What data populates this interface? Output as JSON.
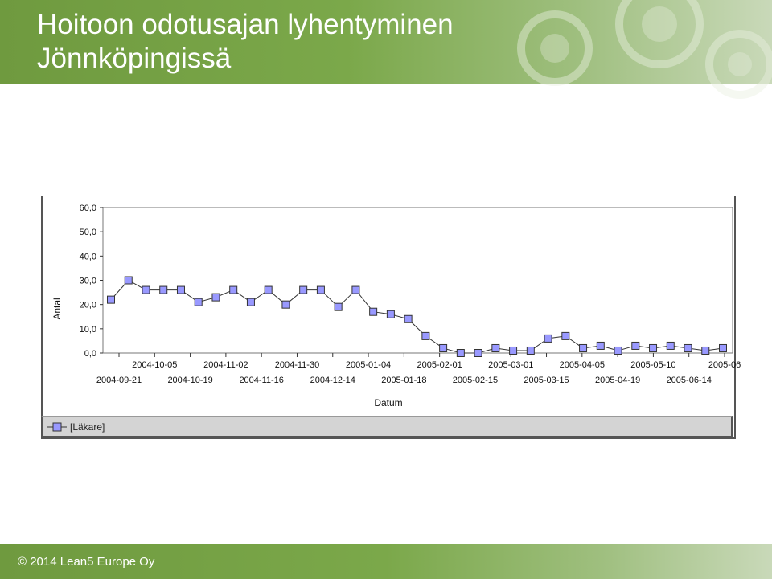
{
  "slide": {
    "title_line1": "Hoitoon odotusajan lyhentyminen",
    "title_line2": "Jönnköpingissä",
    "footer": "© 2014 Lean5 Europe Oy",
    "accent_color": "#7ba84a"
  },
  "chart_data": {
    "type": "line",
    "xlabel": "Datum",
    "ylabel": "Antal",
    "ylim": [
      0,
      60
    ],
    "y_ticks": [
      "0,0",
      "10,0",
      "20,0",
      "30,0",
      "40,0",
      "50,0",
      "60,0"
    ],
    "x_ticks_upper": [
      "2004-10-05",
      "2004-11-02",
      "2004-11-30",
      "2005-01-04",
      "2005-02-01",
      "2005-03-01",
      "2005-04-05",
      "2005-05-10",
      "2005-06"
    ],
    "x_ticks_lower": [
      "2004-09-21",
      "2004-10-19",
      "2004-11-16",
      "2004-12-14",
      "2005-01-18",
      "2005-02-15",
      "2005-03-15",
      "2005-04-19",
      "2005-06-14"
    ],
    "legend_placement": "bottom-left",
    "series": [
      {
        "name": "[Läkare]",
        "color": "#9999ff",
        "values": [
          22,
          30,
          26,
          26,
          26,
          21,
          23,
          26,
          21,
          26,
          20,
          26,
          26,
          19,
          26,
          17,
          16,
          14,
          7,
          2,
          0,
          0,
          2,
          1,
          1,
          6,
          7,
          2,
          3,
          1,
          3,
          2,
          3,
          2,
          1,
          2
        ]
      }
    ]
  }
}
